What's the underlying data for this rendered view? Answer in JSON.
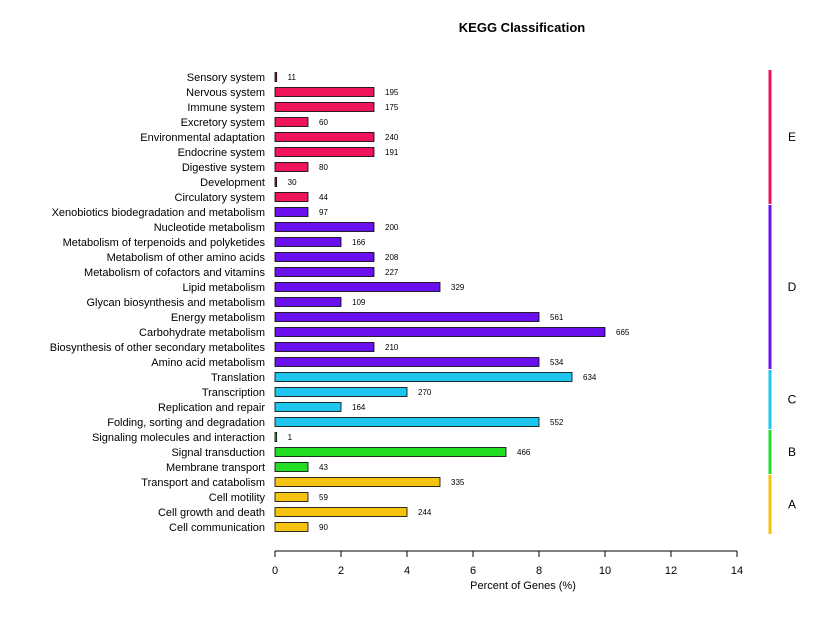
{
  "chart_data": {
    "type": "bar",
    "orientation": "horizontal",
    "title": "KEGG Classification",
    "xlabel": "Percent of Genes (%)",
    "ylabel": "",
    "xlim": [
      0,
      14
    ],
    "xticks": [
      "0",
      "2",
      "4",
      "6",
      "8",
      "10",
      "12",
      "14"
    ],
    "categories": [
      {
        "label": "Sensory system",
        "percent": 0.05,
        "count": "11",
        "group": "E"
      },
      {
        "label": "Nervous system",
        "percent": 3,
        "count": "195",
        "group": "E"
      },
      {
        "label": "Immune system",
        "percent": 3,
        "count": "175",
        "group": "E"
      },
      {
        "label": "Excretory system",
        "percent": 1,
        "count": "60",
        "group": "E"
      },
      {
        "label": "Environmental adaptation",
        "percent": 3,
        "count": "240",
        "group": "E"
      },
      {
        "label": "Endocrine system",
        "percent": 3,
        "count": "191",
        "group": "E"
      },
      {
        "label": "Digestive system",
        "percent": 1,
        "count": "80",
        "group": "E"
      },
      {
        "label": "Development",
        "percent": 0.05,
        "count": "30",
        "group": "E"
      },
      {
        "label": "Circulatory system",
        "percent": 1,
        "count": "44",
        "group": "E"
      },
      {
        "label": "Xenobiotics biodegradation and metabolism",
        "percent": 1,
        "count": "97",
        "group": "D"
      },
      {
        "label": "Nucleotide metabolism",
        "percent": 3,
        "count": "200",
        "group": "D"
      },
      {
        "label": "Metabolism of terpenoids and polyketides",
        "percent": 2,
        "count": "166",
        "group": "D"
      },
      {
        "label": "Metabolism of other amino acids",
        "percent": 3,
        "count": "208",
        "group": "D"
      },
      {
        "label": "Metabolism of cofactors and vitamins",
        "percent": 3,
        "count": "227",
        "group": "D"
      },
      {
        "label": "Lipid metabolism",
        "percent": 5,
        "count": "329",
        "group": "D"
      },
      {
        "label": "Glycan biosynthesis and metabolism",
        "percent": 2,
        "count": "109",
        "group": "D"
      },
      {
        "label": "Energy metabolism",
        "percent": 8,
        "count": "561",
        "group": "D"
      },
      {
        "label": "Carbohydrate metabolism",
        "percent": 10,
        "count": "665",
        "group": "D"
      },
      {
        "label": "Biosynthesis of other secondary metabolites",
        "percent": 3,
        "count": "210",
        "group": "D"
      },
      {
        "label": "Amino acid metabolism",
        "percent": 8,
        "count": "534",
        "group": "D"
      },
      {
        "label": "Translation",
        "percent": 9,
        "count": "634",
        "group": "C"
      },
      {
        "label": "Transcription",
        "percent": 4,
        "count": "270",
        "group": "C"
      },
      {
        "label": "Replication and repair",
        "percent": 2,
        "count": "164",
        "group": "C"
      },
      {
        "label": "Folding, sorting and degradation",
        "percent": 8,
        "count": "552",
        "group": "C"
      },
      {
        "label": "Signaling molecules and interaction",
        "percent": 0.05,
        "count": "1",
        "group": "B"
      },
      {
        "label": "Signal transduction",
        "percent": 7,
        "count": "466",
        "group": "B"
      },
      {
        "label": "Membrane transport",
        "percent": 1,
        "count": "43",
        "group": "B"
      },
      {
        "label": "Transport and catabolism",
        "percent": 5,
        "count": "335",
        "group": "A"
      },
      {
        "label": "Cell motility",
        "percent": 1,
        "count": "59",
        "group": "A"
      },
      {
        "label": "Cell growth and death",
        "percent": 4,
        "count": "244",
        "group": "A"
      },
      {
        "label": "Cell communication",
        "percent": 1,
        "count": "90",
        "group": "A"
      }
    ],
    "groups": [
      {
        "name": "E",
        "color": "#F0145A"
      },
      {
        "name": "D",
        "color": "#6A10EE"
      },
      {
        "name": "C",
        "color": "#1EC6EE"
      },
      {
        "name": "B",
        "color": "#22DD22"
      },
      {
        "name": "A",
        "color": "#F5C20F"
      }
    ],
    "grid": false,
    "legend": "right-side group brackets"
  }
}
